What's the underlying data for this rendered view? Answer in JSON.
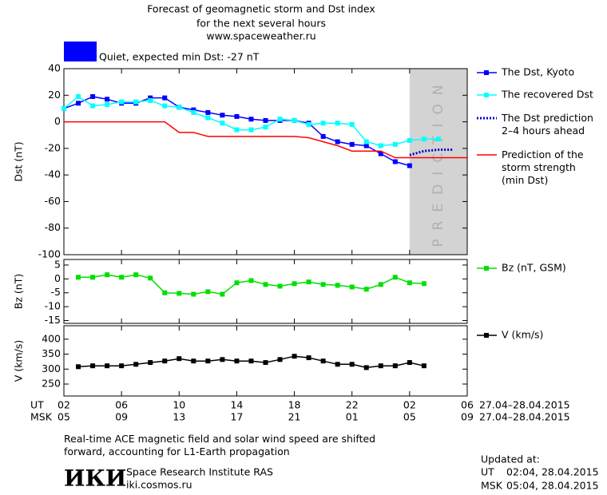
{
  "header": {
    "title_lines": [
      "Forecast of geomagnetic storm and Dst index",
      "for the next several hours"
    ],
    "url": "www.spaceweather.ru",
    "status": "Quiet, expected min Dst: -27 nT",
    "status_color": "#0000ff"
  },
  "time_axis": {
    "xlim": [
      2,
      30
    ],
    "ut_label": "UT",
    "msk_label": "MSK",
    "range": "27.04–28.04.2015",
    "ut_ticks": [
      {
        "value": 2,
        "label": "02"
      },
      {
        "value": 6,
        "label": "06"
      },
      {
        "value": 10,
        "label": "10"
      },
      {
        "value": 14,
        "label": "14"
      },
      {
        "value": 18,
        "label": "18"
      },
      {
        "value": 22,
        "label": "22"
      },
      {
        "value": 26,
        "label": "02"
      },
      {
        "value": 30,
        "label": "06"
      }
    ],
    "msk_ticks": [
      {
        "value": 2,
        "label": "05"
      },
      {
        "value": 6,
        "label": "09"
      },
      {
        "value": 10,
        "label": "13"
      },
      {
        "value": 14,
        "label": "17"
      },
      {
        "value": 18,
        "label": "21"
      },
      {
        "value": 22,
        "label": "01"
      },
      {
        "value": 26,
        "label": "05"
      },
      {
        "value": 30,
        "label": "09"
      }
    ]
  },
  "chart_data": [
    {
      "type": "line",
      "ylabel": "Dst (nT)",
      "ylim": [
        -100,
        40
      ],
      "yticks": [
        40,
        20,
        0,
        -20,
        -40,
        -60,
        -80,
        -100
      ],
      "prediction_band": {
        "label": "PREDICTION",
        "x": [
          26,
          30
        ],
        "color": "#d3d3d3"
      },
      "series": [
        {
          "name": "The Dst, Kyoto",
          "color": "#0000ff",
          "marker": true,
          "dash": false,
          "x": [
            2,
            3,
            4,
            5,
            6,
            7,
            8,
            9,
            10,
            11,
            12,
            13,
            14,
            15,
            16,
            17,
            18,
            19,
            20,
            21,
            22,
            23,
            24,
            25,
            26
          ],
          "values": [
            10,
            14,
            19,
            17,
            14,
            14,
            18,
            18,
            11,
            9,
            7,
            5,
            4,
            2,
            1,
            1,
            1,
            -1,
            -11,
            -15,
            -17,
            -18,
            -24,
            -30,
            -33
          ]
        },
        {
          "name": "The recovered Dst",
          "color": "#00ffff",
          "marker": true,
          "dash": false,
          "x": [
            2,
            3,
            4,
            5,
            6,
            7,
            8,
            9,
            10,
            11,
            12,
            13,
            14,
            15,
            16,
            17,
            18,
            19,
            20,
            21,
            22,
            23,
            24,
            25,
            26,
            27,
            28
          ],
          "values": [
            10,
            19,
            12,
            13,
            15,
            15,
            16,
            12,
            11,
            7,
            3,
            -1,
            -6,
            -6,
            -4,
            2,
            1,
            -2,
            -1,
            -1,
            -2,
            -15,
            -18,
            -17,
            -14,
            -13,
            -13
          ]
        },
        {
          "name": "The Dst prediction\n2–4 hours ahead",
          "color": "#0000cc",
          "marker": false,
          "dash": true,
          "x": [
            26,
            27,
            28,
            29
          ],
          "values": [
            -25,
            -22,
            -21,
            -21
          ]
        },
        {
          "name": "Prediction of the\nstorm strength\n(min Dst)",
          "color": "#ff0000",
          "marker": false,
          "dash": false,
          "x": [
            2,
            3,
            4,
            5,
            6,
            7,
            8,
            9,
            10,
            11,
            12,
            13,
            14,
            15,
            16,
            17,
            18,
            19,
            20,
            21,
            22,
            23,
            24,
            25,
            26,
            27,
            28,
            29,
            30
          ],
          "values": [
            0,
            0,
            0,
            0,
            0,
            0,
            0,
            0,
            -8,
            -8,
            -11,
            -11,
            -11,
            -11,
            -11,
            -11,
            -11,
            -12,
            -15,
            -18,
            -22,
            -22,
            -22,
            -27,
            -27,
            -27,
            -27,
            -27,
            -27
          ]
        }
      ]
    },
    {
      "type": "line",
      "ylabel": "Bz (nT)",
      "ylim": [
        -16,
        7
      ],
      "yticks": [
        5,
        0,
        -5,
        -10,
        -15
      ],
      "series": [
        {
          "name": "Bz (nT, GSM)",
          "color": "#00e000",
          "marker": true,
          "dash": false,
          "x": [
            3,
            4,
            5,
            6,
            7,
            8,
            9,
            10,
            11,
            12,
            13,
            14,
            15,
            16,
            17,
            18,
            19,
            20,
            21,
            22,
            23,
            24,
            25,
            26,
            27
          ],
          "values": [
            0.6,
            0.6,
            1.5,
            0.6,
            1.5,
            0.3,
            -5,
            -5.2,
            -5.5,
            -4.6,
            -5.5,
            -1.4,
            -0.6,
            -2,
            -2.6,
            -1.7,
            -1.1,
            -2,
            -2.3,
            -2.9,
            -3.7,
            -2,
            0.6,
            -1.4,
            -1.7
          ]
        }
      ]
    },
    {
      "type": "line",
      "ylabel": "V (km/s)",
      "ylim": [
        210,
        445
      ],
      "yticks": [
        400,
        350,
        300,
        250
      ],
      "series": [
        {
          "name": "V (km/s)",
          "color": "#000000",
          "marker": true,
          "dash": false,
          "x": [
            3,
            4,
            5,
            6,
            7,
            8,
            9,
            10,
            11,
            12,
            13,
            14,
            15,
            16,
            17,
            18,
            19,
            20,
            21,
            22,
            23,
            24,
            25,
            26,
            27
          ],
          "values": [
            308,
            311,
            311,
            311,
            316,
            322,
            327,
            335,
            327,
            327,
            332,
            327,
            327,
            322,
            332,
            343,
            338,
            327,
            316,
            316,
            305,
            311,
            311,
            322,
            311
          ]
        }
      ]
    }
  ],
  "footer": {
    "note": "Real-time ACE magnetic field and solar wind speed are shifted\nforward, accounting for L1-Earth propagation",
    "logo": "ИКИ",
    "institute": "Space Research Institute RAS",
    "site": "iki.cosmos.ru",
    "updated": "Updated at:",
    "times": [
      {
        "label": "UT",
        "value": "02:04, 28.04.2015"
      },
      {
        "label": "MSK",
        "value": "05:04, 28.04.2015"
      }
    ]
  }
}
